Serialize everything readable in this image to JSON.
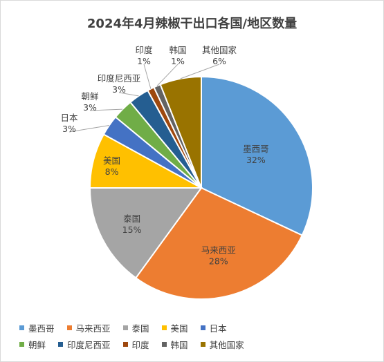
{
  "chart_data": {
    "type": "pie",
    "title": "2024年4月辣椒干出口各国/地区数量",
    "categories": [
      "墨西哥",
      "马来西亚",
      "泰国",
      "美国",
      "日本",
      "朝鲜",
      "印度尼西亚",
      "印度",
      "韩国",
      "其他国家"
    ],
    "values": [
      32,
      28,
      15,
      8,
      3,
      3,
      3,
      1,
      1,
      6
    ],
    "value_labels": [
      "32%",
      "28%",
      "15%",
      "8%",
      "3%",
      "3%",
      "3%",
      "1%",
      "1%",
      "6%"
    ],
    "colors": [
      "#5b9bd5",
      "#ed7d31",
      "#a5a5a5",
      "#ffc000",
      "#4472c4",
      "#70ad47",
      "#255e91",
      "#9e480e",
      "#636363",
      "#997300"
    ],
    "legend_position": "bottom",
    "legend_rows": [
      [
        "墨西哥",
        "马来西亚",
        "泰国",
        "美国",
        "日本"
      ],
      [
        "朝鲜",
        "印度尼西亚",
        "印度",
        "韩国",
        "其他国家"
      ]
    ]
  }
}
